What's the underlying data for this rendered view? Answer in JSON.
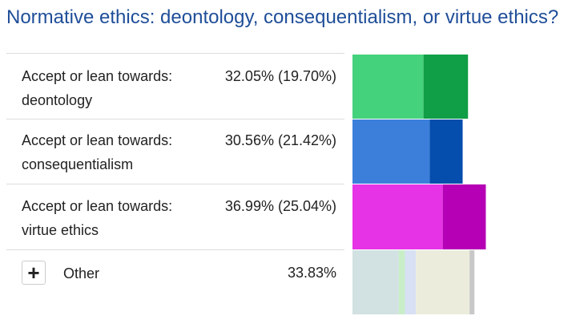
{
  "title": "Normative ethics: deontology, consequentialism, or virtue ethics?",
  "rows": [
    {
      "label_line1": "Accept or lean towards:",
      "label_line2": "deontology",
      "pct": "32.05% (19.70%)"
    },
    {
      "label_line1": "Accept or lean towards:",
      "label_line2": "consequentialism",
      "pct": "30.56% (21.42%)"
    },
    {
      "label_line1": "Accept or lean towards:",
      "label_line2": "virtue ethics",
      "pct": "36.99% (25.04%)"
    }
  ],
  "other": {
    "button_symbol": "+",
    "label": "Other",
    "pct": "33.83%"
  },
  "chart_data": {
    "type": "bar",
    "categories": [
      "Accept or lean towards: deontology",
      "Accept or lean towards: consequentialism",
      "Accept or lean towards: virtue ethics",
      "Other"
    ],
    "series": [
      {
        "values": [
          19.7,
          21.42,
          25.04,
          null
        ],
        "colors": [
          "#44d27c",
          "#3b7fdb",
          "#e633e6"
        ]
      },
      {
        "values": [
          32.05,
          30.56,
          36.99,
          33.83
        ],
        "colors": [
          "#109e47",
          "#054ead",
          "#b500b5"
        ]
      }
    ],
    "other_segment_colors": [
      "#d2e1e1",
      "#c8eec8",
      "#d8e0f4",
      "#ececdc",
      "#c8c8c8"
    ]
  }
}
